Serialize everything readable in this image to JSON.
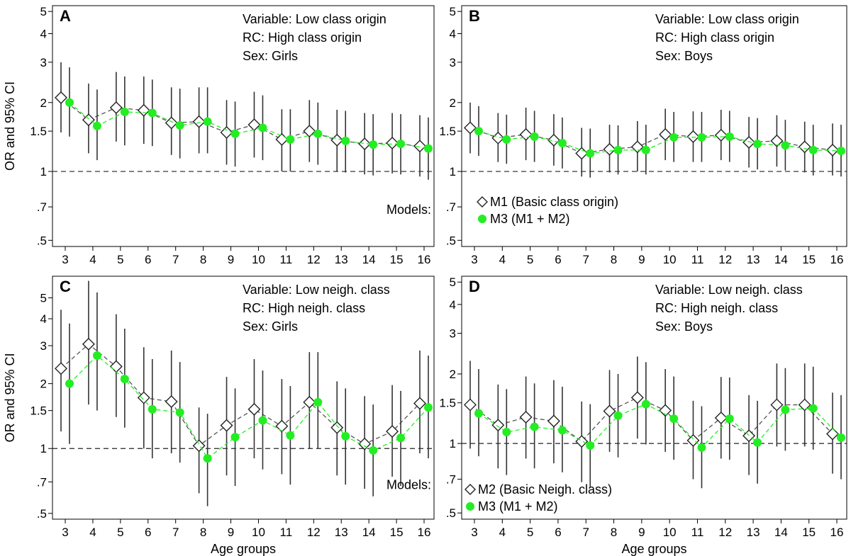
{
  "chart_data": [
    {
      "type": "line",
      "panel_label": "A",
      "info": [
        "Variable: Low class origin",
        "RC: High class origin",
        "Sex: Girls"
      ],
      "ylabel": "OR and 95% CI",
      "xlabel": "",
      "y_scale": "log",
      "ylim": [
        0.47,
        5.3
      ],
      "reference_line": 1,
      "y_ticks": [
        0.5,
        0.7,
        1,
        1.5,
        2,
        3,
        4,
        5
      ],
      "y_tick_labels": [
        ".5",
        ".7",
        "1",
        "1.5",
        "2",
        "3",
        "4",
        "5"
      ],
      "x": [
        3,
        4,
        5,
        6,
        7,
        8,
        9,
        10,
        11,
        12,
        13,
        14,
        15,
        16
      ],
      "x_tick_labels": [
        "3",
        "4",
        "5",
        "6",
        "7",
        "8",
        "9",
        "10",
        "11",
        "12",
        "13",
        "14",
        "15",
        "16"
      ],
      "series": [
        {
          "marker": "diamond",
          "color": "#555555",
          "values": [
            2.1,
            1.68,
            1.9,
            1.85,
            1.63,
            1.65,
            1.48,
            1.6,
            1.38,
            1.5,
            1.37,
            1.32,
            1.33,
            1.29
          ],
          "ci_lower": [
            1.48,
            1.2,
            1.35,
            1.32,
            1.18,
            1.2,
            1.07,
            1.15,
            1.0,
            1.1,
            1.0,
            0.97,
            0.98,
            0.95
          ],
          "ci_upper": [
            3.0,
            2.42,
            2.72,
            2.6,
            2.33,
            2.33,
            2.05,
            2.23,
            1.87,
            2.05,
            1.86,
            1.8,
            1.8,
            1.76
          ]
        },
        {
          "marker": "circle",
          "color": "#22ee22",
          "values": [
            2.0,
            1.58,
            1.82,
            1.8,
            1.59,
            1.65,
            1.46,
            1.55,
            1.38,
            1.46,
            1.36,
            1.31,
            1.32,
            1.26
          ],
          "ci_lower": [
            1.42,
            1.12,
            1.3,
            1.29,
            1.14,
            1.2,
            1.05,
            1.12,
            1.0,
            1.07,
            0.99,
            0.96,
            0.97,
            0.92
          ],
          "ci_upper": [
            2.85,
            2.28,
            2.6,
            2.52,
            2.3,
            2.33,
            2.02,
            2.15,
            1.87,
            2.0,
            1.84,
            1.78,
            1.78,
            1.72
          ]
        }
      ],
      "legend_text": [
        "Models:"
      ]
    },
    {
      "type": "line",
      "panel_label": "B",
      "info": [
        "Variable: Low class origin",
        "RC: High class origin",
        "Sex: Boys"
      ],
      "ylabel": "",
      "xlabel": "",
      "y_scale": "log",
      "ylim": [
        0.47,
        5.3
      ],
      "reference_line": 1,
      "y_ticks": [
        0.5,
        0.7,
        1,
        1.5,
        2,
        3,
        4,
        5
      ],
      "y_tick_labels": [
        ".5",
        ".7",
        "1",
        "1.5",
        "2",
        "3",
        "4",
        "5"
      ],
      "x": [
        3,
        4,
        5,
        6,
        7,
        8,
        9,
        10,
        11,
        12,
        13,
        14,
        15,
        16
      ],
      "x_tick_labels": [
        "3",
        "4",
        "5",
        "6",
        "7",
        "8",
        "9",
        "10",
        "11",
        "12",
        "13",
        "14",
        "15",
        "16"
      ],
      "series": [
        {
          "name": "M1 (Basic class origin)",
          "marker": "diamond",
          "color": "#555555",
          "values": [
            1.55,
            1.4,
            1.45,
            1.37,
            1.2,
            1.25,
            1.28,
            1.45,
            1.42,
            1.44,
            1.34,
            1.36,
            1.28,
            1.24
          ],
          "ci_lower": [
            1.2,
            1.1,
            1.12,
            1.06,
            0.95,
            0.99,
            1.0,
            1.12,
            1.1,
            1.12,
            1.04,
            1.05,
            0.99,
            0.96
          ],
          "ci_upper": [
            2.0,
            1.8,
            1.9,
            1.78,
            1.55,
            1.6,
            1.66,
            1.88,
            1.83,
            1.86,
            1.73,
            1.76,
            1.65,
            1.62
          ]
        },
        {
          "name": "M3 (M1 + M2)",
          "marker": "circle",
          "color": "#22ee22",
          "values": [
            1.5,
            1.38,
            1.42,
            1.33,
            1.2,
            1.24,
            1.24,
            1.41,
            1.41,
            1.42,
            1.32,
            1.3,
            1.24,
            1.23
          ],
          "ci_lower": [
            1.17,
            1.08,
            1.1,
            1.03,
            0.94,
            0.97,
            0.97,
            1.1,
            1.1,
            1.1,
            1.02,
            1.01,
            0.96,
            0.95
          ],
          "ci_upper": [
            1.93,
            1.77,
            1.84,
            1.72,
            1.54,
            1.59,
            1.6,
            1.82,
            1.82,
            1.84,
            1.71,
            1.68,
            1.6,
            1.6
          ]
        }
      ]
    },
    {
      "type": "line",
      "panel_label": "C",
      "info": [
        "Variable: Low neigh. class",
        "RC: High neigh. class",
        "Sex: Girls"
      ],
      "ylabel": "OR and 95% CI",
      "xlabel": "Age groups",
      "y_scale": "log",
      "ylim": [
        0.47,
        6.3
      ],
      "reference_line": 1,
      "y_ticks": [
        0.5,
        0.7,
        1,
        1.5,
        2,
        3,
        4,
        5
      ],
      "y_tick_labels": [
        ".5",
        ".7",
        "1",
        "1.5",
        "2",
        "3",
        "4",
        "5"
      ],
      "x": [
        3,
        4,
        5,
        6,
        7,
        8,
        9,
        10,
        11,
        12,
        13,
        14,
        15,
        16
      ],
      "x_tick_labels": [
        "3",
        "4",
        "5",
        "6",
        "7",
        "8",
        "9",
        "10",
        "11",
        "12",
        "13",
        "14",
        "15",
        "16"
      ],
      "series": [
        {
          "marker": "diamond",
          "color": "#555555",
          "values": [
            2.35,
            3.05,
            2.4,
            1.72,
            1.65,
            1.03,
            1.28,
            1.52,
            1.27,
            1.64,
            1.25,
            1.05,
            1.2,
            1.62
          ],
          "ci_lower": [
            1.2,
            1.6,
            1.4,
            1.0,
            0.95,
            0.62,
            0.75,
            0.9,
            0.76,
            1.0,
            0.75,
            0.65,
            0.74,
            0.95
          ],
          "ci_upper": [
            4.4,
            6.0,
            4.2,
            2.95,
            2.85,
            1.55,
            2.15,
            2.6,
            2.1,
            2.8,
            2.05,
            1.75,
            1.97,
            2.85
          ]
        },
        {
          "marker": "circle",
          "color": "#22ee22",
          "values": [
            2.0,
            2.7,
            2.1,
            1.52,
            1.47,
            0.9,
            1.13,
            1.35,
            1.15,
            1.64,
            1.14,
            0.98,
            1.12,
            1.55
          ],
          "ci_lower": [
            1.05,
            1.5,
            1.25,
            0.9,
            0.86,
            0.54,
            0.67,
            0.8,
            0.68,
            1.0,
            0.68,
            0.6,
            0.67,
            0.9
          ],
          "ci_upper": [
            3.8,
            5.3,
            3.6,
            2.6,
            2.52,
            1.45,
            1.9,
            2.3,
            1.95,
            2.8,
            1.9,
            1.6,
            1.85,
            2.7
          ]
        }
      ],
      "legend_text": [
        "Models:"
      ]
    },
    {
      "type": "line",
      "panel_label": "D",
      "info": [
        "Variable: Low neigh. class",
        "RC: High neigh. class",
        "Sex: Boys"
      ],
      "ylabel": "",
      "xlabel": "Age groups",
      "y_scale": "log",
      "ylim": [
        0.47,
        5.3
      ],
      "reference_line": 1,
      "y_ticks": [
        0.5,
        0.7,
        1,
        1.5,
        2,
        3,
        4,
        5
      ],
      "y_tick_labels": [
        ".5",
        ".7",
        "1",
        "1.5",
        "2",
        "3",
        "4",
        "5"
      ],
      "x": [
        3,
        4,
        5,
        6,
        7,
        8,
        9,
        10,
        11,
        12,
        13,
        14,
        15,
        16
      ],
      "x_tick_labels": [
        "3",
        "4",
        "5",
        "6",
        "7",
        "8",
        "9",
        "10",
        "11",
        "12",
        "13",
        "14",
        "15",
        "16"
      ],
      "series": [
        {
          "name": "M2 (Basic Neigh. class)",
          "marker": "diamond",
          "color": "#555555",
          "values": [
            1.47,
            1.2,
            1.3,
            1.25,
            1.02,
            1.38,
            1.58,
            1.39,
            1.03,
            1.29,
            1.08,
            1.47,
            1.47,
            1.1
          ],
          "ci_lower": [
            0.95,
            0.78,
            0.86,
            0.82,
            0.68,
            0.92,
            1.05,
            0.92,
            0.7,
            0.86,
            0.73,
            0.97,
            0.97,
            0.74
          ],
          "ci_upper": [
            2.28,
            1.8,
            1.95,
            1.88,
            1.52,
            2.08,
            2.38,
            2.1,
            1.53,
            1.94,
            1.62,
            2.22,
            2.22,
            1.66
          ]
        },
        {
          "name": "M3 (M1 + M2)",
          "marker": "circle",
          "color": "#22ee22",
          "values": [
            1.35,
            1.12,
            1.18,
            1.14,
            0.98,
            1.32,
            1.48,
            1.28,
            0.96,
            1.28,
            1.01,
            1.4,
            1.42,
            1.06
          ],
          "ci_lower": [
            0.88,
            0.73,
            0.78,
            0.75,
            0.65,
            0.87,
            0.99,
            0.85,
            0.64,
            0.85,
            0.67,
            0.93,
            0.94,
            0.7
          ],
          "ci_upper": [
            2.1,
            1.72,
            1.82,
            1.76,
            1.48,
            2.0,
            2.25,
            1.95,
            1.45,
            1.93,
            1.53,
            2.12,
            2.15,
            1.62
          ]
        }
      ]
    }
  ]
}
